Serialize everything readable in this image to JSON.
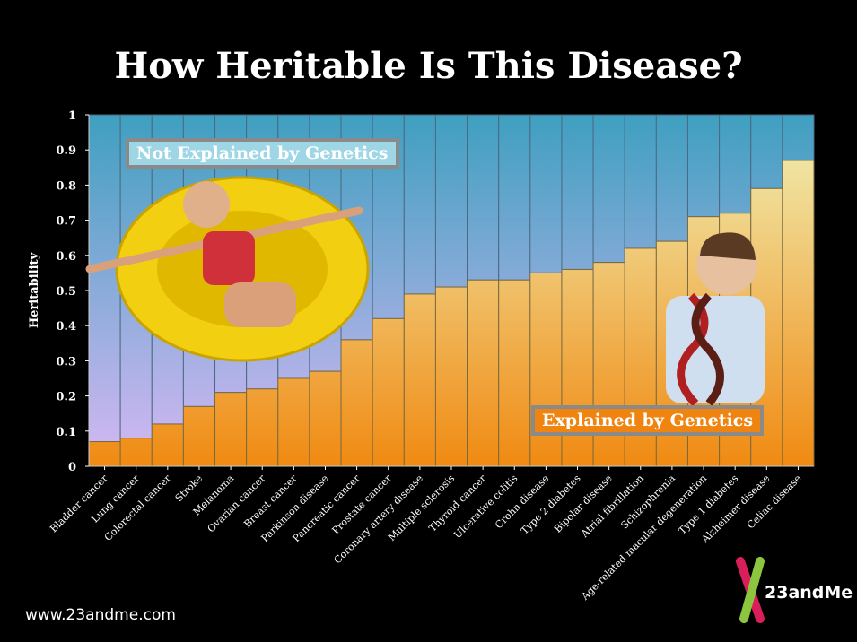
{
  "chart_data": {
    "type": "bar",
    "stacked": true,
    "title": "How Heritable Is This Disease?",
    "ylabel": "Heritability",
    "xlabel": "",
    "ylim": [
      0,
      1
    ],
    "yticks": [
      "0",
      "0.1",
      "0.2",
      "0.3",
      "0.4",
      "0.5",
      "0.6",
      "0.7",
      "0.8",
      "0.9",
      "1"
    ],
    "grid": false,
    "categories": [
      "Bladder cancer",
      "Lung cancer",
      "Colorectal cancer",
      "Stroke",
      "Melanoma",
      "Ovarian cancer",
      "Breast cancer",
      "Parkinson disease",
      "Pancreatic cancer",
      "Prostate cancer",
      "Coronary artery disease",
      "Multiple sclerosis",
      "Thyroid cancer",
      "Ulcerative colitis",
      "Crohn disease",
      "Type 2 diabetes",
      "Bipolar disease",
      "Atrial fibrillation",
      "Schizophrenia",
      "Age-related macular degeneration",
      "Type 1 diabetes",
      "Alzheimer disease",
      "Celiac disease"
    ],
    "values": [
      0.07,
      0.08,
      0.12,
      0.17,
      0.21,
      0.22,
      0.25,
      0.27,
      0.36,
      0.42,
      0.49,
      0.51,
      0.53,
      0.53,
      0.55,
      0.56,
      0.58,
      0.62,
      0.64,
      0.71,
      0.72,
      0.79,
      0.87
    ],
    "series": [
      {
        "name": "Explained by Genetics",
        "colors": [
          "#f08a12",
          "#f0f2b8"
        ]
      },
      {
        "name": "Not Explained by Genetics",
        "colors": [
          "#d6b8f4",
          "#3f9fc0"
        ]
      }
    ]
  },
  "annotations": {
    "not_explained": "Not Explained by Genetics",
    "explained": "Explained by Genetics"
  },
  "footer": {
    "url": "www.23andme.com",
    "logo_text": "23andMe"
  }
}
